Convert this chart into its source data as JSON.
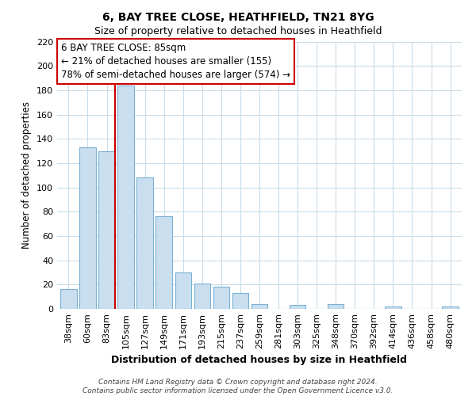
{
  "title": "6, BAY TREE CLOSE, HEATHFIELD, TN21 8YG",
  "subtitle": "Size of property relative to detached houses in Heathfield",
  "xlabel": "Distribution of detached houses by size in Heathfield",
  "ylabel": "Number of detached properties",
  "bar_labels": [
    "38sqm",
    "60sqm",
    "83sqm",
    "105sqm",
    "127sqm",
    "149sqm",
    "171sqm",
    "193sqm",
    "215sqm",
    "237sqm",
    "259sqm",
    "281sqm",
    "303sqm",
    "325sqm",
    "348sqm",
    "370sqm",
    "392sqm",
    "414sqm",
    "436sqm",
    "458sqm",
    "480sqm"
  ],
  "bar_values": [
    16,
    133,
    130,
    184,
    108,
    76,
    30,
    21,
    18,
    13,
    4,
    0,
    3,
    0,
    4,
    0,
    0,
    2,
    0,
    0,
    2
  ],
  "bar_color": "#c9dff0",
  "bar_edge_color": "#7ab0d4",
  "highlight_line_color": "#cc0000",
  "ylim": [
    0,
    220
  ],
  "yticks": [
    0,
    20,
    40,
    60,
    80,
    100,
    120,
    140,
    160,
    180,
    200,
    220
  ],
  "annotation_title": "6 BAY TREE CLOSE: 85sqm",
  "annotation_line1": "← 21% of detached houses are smaller (155)",
  "annotation_line2": "78% of semi-detached houses are larger (574) →",
  "annotation_box_color": "#ffffff",
  "annotation_box_edge_color": "#cc0000",
  "footer_line1": "Contains HM Land Registry data © Crown copyright and database right 2024.",
  "footer_line2": "Contains public sector information licensed under the Open Government Licence v3.0.",
  "background_color": "#ffffff",
  "grid_color": "#c8dcea"
}
